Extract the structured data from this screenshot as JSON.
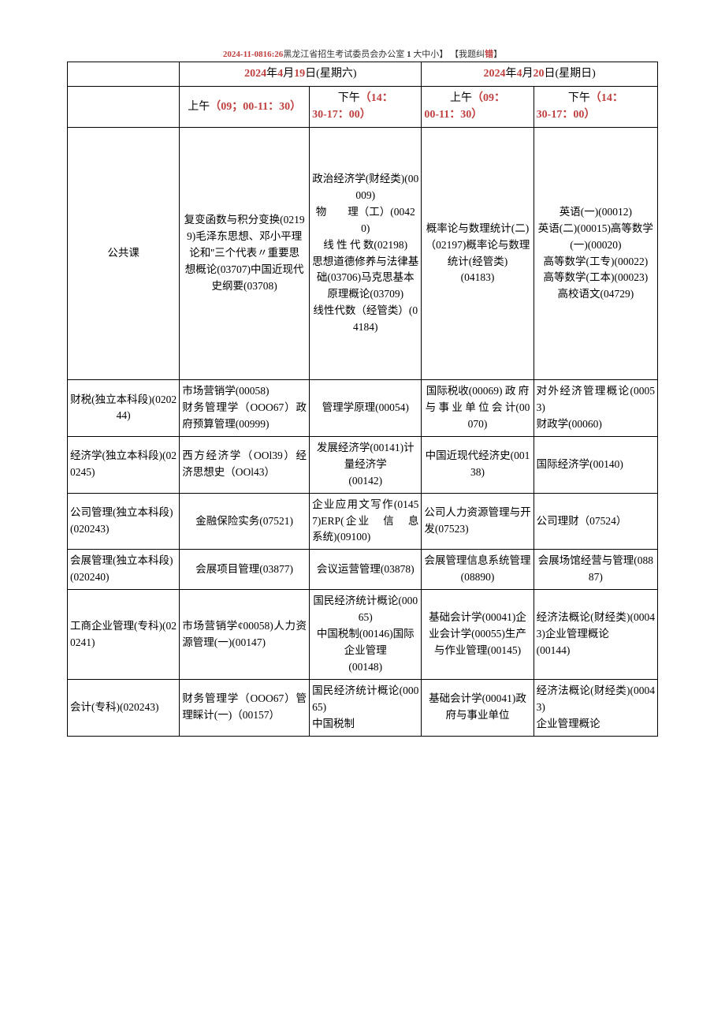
{
  "header": {
    "timestamp": "2024-11-0816:26",
    "org": "黑龙江省招生考试委员会办公室",
    "sizes_prefix": "1",
    "sizes": "大中小",
    "correction_pre": "【我",
    "correction_mid": "题纠",
    "correction_bold": "错",
    "correction_post": "】"
  },
  "dates": {
    "d1_pre": "2024",
    "d1_mid1": "年",
    "d1_mon": "4",
    "d1_mid2": "月",
    "d1_day": "19",
    "d1_suf": "日(星期六)",
    "d2_pre": "2024",
    "d2_mid1": "年",
    "d2_mon": "4",
    "d2_mid2": "月",
    "d2_day": "20",
    "d2_suf": "日(星期日)"
  },
  "times": {
    "t1_label": "上午",
    "t1_time": "（09；00-11：30）",
    "t2_label": "下午",
    "t2_time1": "（14：",
    "t2_time2": "30-17：00）",
    "t3_label": "上午",
    "t3_time1": "（09：",
    "t3_time2": "00-11：30）",
    "t4_label": "下午",
    "t4_time1": "（14：",
    "t4_time2": "30-17：00）"
  },
  "rows": [
    {
      "name": "公共课",
      "c1": "复变函数与积分变换(02199)毛泽东思想、邓小平理论和''三个代表〃重要思\n想概论(03707)中国近现代史纲要(03708)",
      "c2": "政治经济学(财经类)(00009)\n物　　理（工）(00420)\n线 性 代 数(02198)\n思想道德修养与法律基础(03706)马克思基本原理概论(03709)\n线性代数（经管类）(04184)",
      "c3": "概率论与数理统计(二)（02197)概率论与数理统计(经管类)\n(04183)",
      "c4": "英语(一)(00012)\n英语(二)(00015)高等数学(一)(00020)\n高等数学(工专)(00022)\n高等数学(工本)(00023)\n高校语文(04729)"
    },
    {
      "name": "财税(独立本科段)(020244)",
      "c1": "市场营销学(00058)\n财务管理学（OOO67）政府预算管理(00999)",
      "c2": "管理学原理(00054)",
      "c3": "国际税收(00069) 政 府与 事 业 单 位 会 计(00070)",
      "c4": "对外经济管理概论(00053)\n财政学(00060)"
    },
    {
      "name": "经济学(独立本科段)(020245)",
      "c1": "西方经济学（OOl39）经济思想史（OOl43）",
      "c2": "发展经济学(00141)计量经济学\n(00142)",
      "c3": "中国近现代经济史(00138)",
      "c4": "国际经济学(00140)"
    },
    {
      "name": "公司管理(独立本科段)(020243)",
      "c1": "金融保险实务(07521)",
      "c2": "企业应用文写作(01457)ERP(企业　信　息　系统)(09100)",
      "c3": "公司人力资源管理与开发(07523)",
      "c4": "公司理财（07524）"
    },
    {
      "name": "会展管理(独立本科段)(020240)",
      "c1": "会展项目管理(03877)",
      "c2": "会议运营管理(03878)",
      "c3": "会展管理信息系统管理(08890)",
      "c4": "会展场馆经营与管理(08887)"
    },
    {
      "name": "工商企业管理(专科)(020241)",
      "c1": "市场营销学¢00058)人力资源管理(一)(00147)",
      "c2": "国民经济统计概论(00065)\n中国税制(00146)国际企业管理\n(00148)",
      "c3": "基础会计学(00041)企业会计学(00055)生产与作业管理(00145)",
      "c4": "经济法概论(财经类)(00043)企业管理概论\n(00144)"
    },
    {
      "name": "会计(专科)(020243)",
      "c1": "财务管理学（OOO67）管理睬计(一)（00157）",
      "c2": "国民经济统计概论(00065)\n中国税制",
      "c3": "基础会计学(00041)政府与事业单位",
      "c4": "经济法概论(财经类)(00043)\n企业管理概论"
    }
  ]
}
